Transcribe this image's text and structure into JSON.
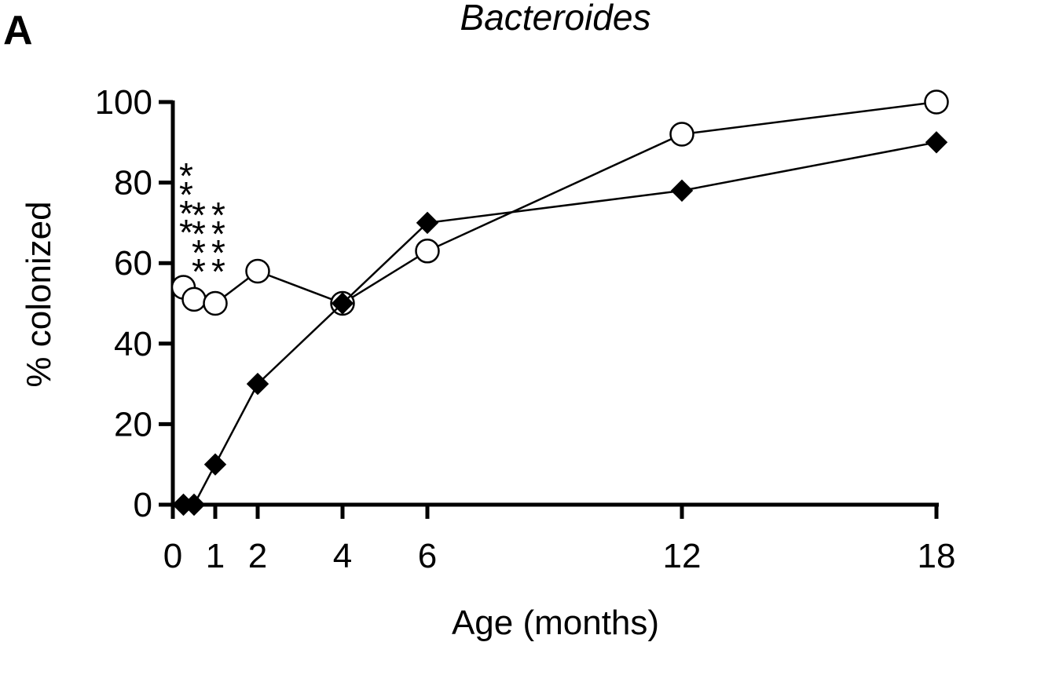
{
  "panel_label": "A",
  "chart_data": {
    "type": "line",
    "title": "Bacteroides",
    "xlabel": "Age (months)",
    "ylabel": "% colonized",
    "xlim": [
      0,
      18
    ],
    "ylim": [
      0,
      100
    ],
    "xticks": [
      0,
      1,
      2,
      4,
      6,
      12,
      18
    ],
    "yticks": [
      0,
      20,
      40,
      60,
      80,
      100
    ],
    "grid": false,
    "legend": "none",
    "series": [
      {
        "marker": "open-circle",
        "color": "#000000",
        "fill": "#ffffff",
        "points": [
          [
            0.25,
            54
          ],
          [
            0.5,
            51
          ],
          [
            1,
            50
          ],
          [
            2,
            58
          ],
          [
            4,
            50
          ],
          [
            6,
            63
          ],
          [
            12,
            92
          ],
          [
            18,
            100
          ]
        ]
      },
      {
        "marker": "filled-diamond",
        "color": "#000000",
        "fill": "#000000",
        "points": [
          [
            0.25,
            0
          ],
          [
            0.5,
            0
          ],
          [
            1,
            10
          ],
          [
            2,
            30
          ],
          [
            4,
            50
          ],
          [
            6,
            70
          ],
          [
            12,
            78
          ],
          [
            18,
            90
          ]
        ]
      }
    ],
    "annotations": [
      {
        "x": 0.25,
        "text": "****"
      },
      {
        "x": 0.75,
        "text": "****"
      }
    ]
  }
}
